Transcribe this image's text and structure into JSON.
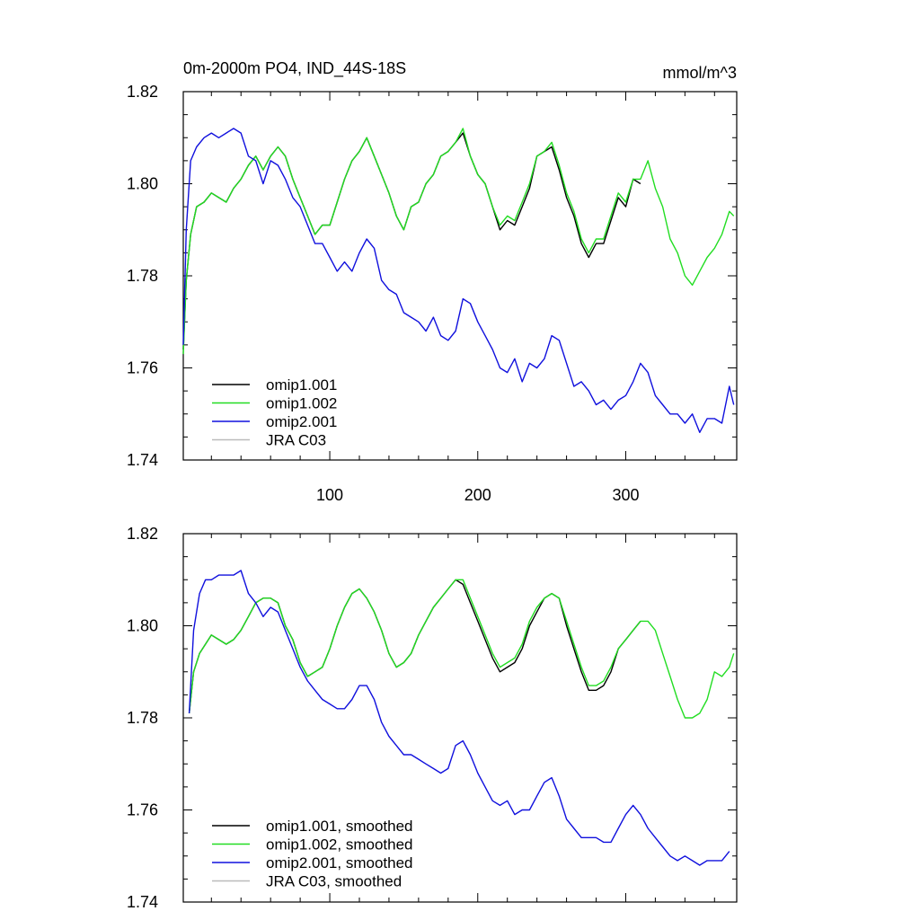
{
  "chart_data": [
    {
      "type": "line",
      "title": "0m-2000m PO4, IND_44S-18S",
      "units": "mmol/m^3",
      "xlim": [
        1,
        375
      ],
      "ylim": [
        1.74,
        1.82
      ],
      "xticks": [
        100,
        200,
        300
      ],
      "yticks": [
        1.74,
        1.76,
        1.78,
        1.8,
        1.82
      ],
      "ytick_labels": [
        "1.74",
        "1.76",
        "1.78",
        "1.80",
        "1.82"
      ],
      "xtick_labels": [
        "100",
        "200",
        "300"
      ],
      "series": [
        {
          "name": "omip1.001",
          "color": "#000000",
          "x": [
            1,
            3,
            6,
            10,
            15,
            20,
            25,
            30,
            35,
            40,
            45,
            50,
            55,
            60,
            65,
            70,
            75,
            80,
            85,
            90,
            95,
            100,
            105,
            110,
            115,
            120,
            125,
            130,
            135,
            140,
            145,
            150,
            155,
            160,
            165,
            170,
            175,
            180,
            185,
            190,
            195,
            200,
            205,
            210,
            215,
            220,
            225,
            230,
            235,
            240,
            245,
            250,
            255,
            260,
            265,
            270,
            275,
            280,
            285,
            290,
            295,
            300,
            305,
            310
          ],
          "y": [
            1.764,
            1.779,
            1.789,
            1.795,
            1.796,
            1.798,
            1.797,
            1.796,
            1.799,
            1.801,
            1.804,
            1.806,
            1.803,
            1.806,
            1.808,
            1.806,
            1.801,
            1.797,
            1.793,
            1.789,
            1.791,
            1.791,
            1.796,
            1.801,
            1.805,
            1.807,
            1.81,
            1.806,
            1.802,
            1.798,
            1.793,
            1.79,
            1.795,
            1.796,
            1.8,
            1.802,
            1.806,
            1.807,
            1.809,
            1.811,
            1.806,
            1.802,
            1.8,
            1.795,
            1.79,
            1.792,
            1.791,
            1.795,
            1.799,
            1.806,
            1.807,
            1.808,
            1.803,
            1.797,
            1.793,
            1.787,
            1.784,
            1.787,
            1.787,
            1.792,
            1.797,
            1.795,
            1.801,
            1.8
          ]
        },
        {
          "name": "omip1.002",
          "color": "#22dd22",
          "x": [
            1,
            3,
            6,
            10,
            15,
            20,
            25,
            30,
            35,
            40,
            45,
            50,
            55,
            60,
            65,
            70,
            75,
            80,
            85,
            90,
            95,
            100,
            105,
            110,
            115,
            120,
            125,
            130,
            135,
            140,
            145,
            150,
            155,
            160,
            165,
            170,
            175,
            180,
            185,
            190,
            195,
            200,
            205,
            210,
            215,
            220,
            225,
            230,
            235,
            240,
            245,
            250,
            255,
            260,
            265,
            270,
            275,
            280,
            285,
            290,
            295,
            300,
            305,
            310,
            315,
            320,
            325,
            330,
            335,
            340,
            345,
            350,
            355,
            360,
            365,
            370,
            373
          ],
          "y": [
            1.763,
            1.779,
            1.789,
            1.795,
            1.796,
            1.798,
            1.797,
            1.796,
            1.799,
            1.801,
            1.804,
            1.806,
            1.803,
            1.806,
            1.808,
            1.806,
            1.801,
            1.797,
            1.793,
            1.789,
            1.791,
            1.791,
            1.796,
            1.801,
            1.805,
            1.807,
            1.81,
            1.806,
            1.802,
            1.798,
            1.793,
            1.79,
            1.795,
            1.796,
            1.8,
            1.802,
            1.806,
            1.807,
            1.809,
            1.812,
            1.806,
            1.802,
            1.8,
            1.795,
            1.791,
            1.793,
            1.792,
            1.796,
            1.8,
            1.806,
            1.807,
            1.809,
            1.804,
            1.798,
            1.794,
            1.788,
            1.785,
            1.788,
            1.788,
            1.793,
            1.798,
            1.796,
            1.801,
            1.801,
            1.805,
            1.799,
            1.795,
            1.788,
            1.785,
            1.78,
            1.778,
            1.781,
            1.784,
            1.786,
            1.789,
            1.794,
            1.793
          ]
        },
        {
          "name": "omip2.001",
          "color": "#1010dd",
          "x": [
            1,
            3,
            6,
            10,
            15,
            20,
            25,
            30,
            35,
            40,
            45,
            50,
            55,
            60,
            65,
            70,
            75,
            80,
            85,
            90,
            95,
            100,
            105,
            110,
            115,
            120,
            125,
            130,
            135,
            140,
            145,
            150,
            155,
            160,
            165,
            170,
            175,
            180,
            185,
            190,
            195,
            200,
            205,
            210,
            215,
            220,
            225,
            230,
            235,
            240,
            245,
            250,
            255,
            260,
            265,
            270,
            275,
            280,
            285,
            290,
            295,
            300,
            305,
            310,
            315,
            320,
            325,
            330,
            335,
            340,
            345,
            350,
            355,
            360,
            365,
            370,
            373
          ],
          "y": [
            1.765,
            1.79,
            1.805,
            1.808,
            1.81,
            1.811,
            1.81,
            1.811,
            1.812,
            1.811,
            1.806,
            1.805,
            1.8,
            1.805,
            1.804,
            1.801,
            1.797,
            1.795,
            1.791,
            1.787,
            1.787,
            1.784,
            1.781,
            1.783,
            1.781,
            1.785,
            1.788,
            1.786,
            1.779,
            1.777,
            1.776,
            1.772,
            1.771,
            1.77,
            1.768,
            1.771,
            1.767,
            1.766,
            1.768,
            1.775,
            1.774,
            1.77,
            1.767,
            1.764,
            1.76,
            1.759,
            1.762,
            1.757,
            1.761,
            1.76,
            1.762,
            1.767,
            1.766,
            1.761,
            1.756,
            1.757,
            1.755,
            1.752,
            1.753,
            1.751,
            1.753,
            1.754,
            1.757,
            1.761,
            1.759,
            1.754,
            1.752,
            1.75,
            1.75,
            1.748,
            1.75,
            1.746,
            1.749,
            1.749,
            1.748,
            1.756,
            1.752
          ]
        },
        {
          "name": "JRA C03",
          "color": "#bbbbbb",
          "x": [],
          "y": []
        }
      ],
      "legend": [
        "omip1.001",
        "omip1.002",
        "omip2.001",
        "JRA C03"
      ],
      "legend_position": "bottom-left"
    },
    {
      "type": "line",
      "title": "",
      "xlim": [
        1,
        375
      ],
      "ylim": [
        1.74,
        1.82
      ],
      "xticks": [
        100,
        200,
        300
      ],
      "yticks": [
        1.74,
        1.76,
        1.78,
        1.8,
        1.82
      ],
      "ytick_labels": [
        "1.74",
        "1.76",
        "1.78",
        "1.80",
        "1.82"
      ],
      "xtick_labels": [],
      "series": [
        {
          "name": "omip1.001, smoothed",
          "color": "#000000",
          "x": [
            5,
            8,
            12,
            16,
            20,
            25,
            30,
            35,
            40,
            45,
            50,
            55,
            60,
            65,
            70,
            75,
            80,
            85,
            90,
            95,
            100,
            105,
            110,
            115,
            120,
            125,
            130,
            135,
            140,
            145,
            150,
            155,
            160,
            165,
            170,
            175,
            180,
            185,
            190,
            195,
            200,
            205,
            210,
            215,
            220,
            225,
            230,
            235,
            240,
            245,
            250,
            255,
            260,
            265,
            270,
            275,
            280,
            285,
            290,
            295,
            300,
            305,
            310
          ],
          "y": [
            1.781,
            1.79,
            1.794,
            1.796,
            1.798,
            1.797,
            1.796,
            1.797,
            1.799,
            1.802,
            1.805,
            1.806,
            1.806,
            1.805,
            1.8,
            1.797,
            1.792,
            1.789,
            1.79,
            1.791,
            1.795,
            1.8,
            1.804,
            1.807,
            1.808,
            1.806,
            1.803,
            1.799,
            1.794,
            1.791,
            1.792,
            1.794,
            1.798,
            1.801,
            1.804,
            1.806,
            1.808,
            1.81,
            1.809,
            1.805,
            1.801,
            1.797,
            1.793,
            1.79,
            1.791,
            1.792,
            1.795,
            1.8,
            1.803,
            1.806,
            1.807,
            1.806,
            1.8,
            1.795,
            1.79,
            1.786,
            1.786,
            1.787,
            1.79,
            1.795,
            1.797,
            1.799,
            1.801
          ]
        },
        {
          "name": "omip1.002, smoothed",
          "color": "#22dd22",
          "x": [
            5,
            8,
            12,
            16,
            20,
            25,
            30,
            35,
            40,
            45,
            50,
            55,
            60,
            65,
            70,
            75,
            80,
            85,
            90,
            95,
            100,
            105,
            110,
            115,
            120,
            125,
            130,
            135,
            140,
            145,
            150,
            155,
            160,
            165,
            170,
            175,
            180,
            185,
            190,
            195,
            200,
            205,
            210,
            215,
            220,
            225,
            230,
            235,
            240,
            245,
            250,
            255,
            260,
            265,
            270,
            275,
            280,
            285,
            290,
            295,
            300,
            305,
            310,
            315,
            320,
            325,
            330,
            335,
            340,
            345,
            350,
            355,
            360,
            365,
            370,
            373
          ],
          "y": [
            1.781,
            1.79,
            1.794,
            1.796,
            1.798,
            1.797,
            1.796,
            1.797,
            1.799,
            1.802,
            1.805,
            1.806,
            1.806,
            1.805,
            1.8,
            1.797,
            1.792,
            1.789,
            1.79,
            1.791,
            1.795,
            1.8,
            1.804,
            1.807,
            1.808,
            1.806,
            1.803,
            1.799,
            1.794,
            1.791,
            1.792,
            1.794,
            1.798,
            1.801,
            1.804,
            1.806,
            1.808,
            1.81,
            1.81,
            1.806,
            1.802,
            1.798,
            1.794,
            1.791,
            1.792,
            1.793,
            1.796,
            1.801,
            1.804,
            1.806,
            1.807,
            1.806,
            1.801,
            1.796,
            1.791,
            1.787,
            1.787,
            1.788,
            1.791,
            1.795,
            1.797,
            1.799,
            1.801,
            1.801,
            1.799,
            1.794,
            1.789,
            1.784,
            1.78,
            1.78,
            1.781,
            1.784,
            1.79,
            1.789,
            1.791,
            1.794
          ]
        },
        {
          "name": "omip2.001, smoothed",
          "color": "#1010dd",
          "x": [
            5,
            8,
            12,
            16,
            20,
            25,
            30,
            35,
            40,
            45,
            50,
            55,
            60,
            65,
            70,
            75,
            80,
            85,
            90,
            95,
            100,
            105,
            110,
            115,
            120,
            125,
            130,
            135,
            140,
            145,
            150,
            155,
            160,
            165,
            170,
            175,
            180,
            185,
            190,
            195,
            200,
            205,
            210,
            215,
            220,
            225,
            230,
            235,
            240,
            245,
            250,
            255,
            260,
            265,
            270,
            275,
            280,
            285,
            290,
            295,
            300,
            305,
            310,
            315,
            320,
            325,
            330,
            335,
            340,
            345,
            350,
            355,
            360,
            365,
            370
          ],
          "y": [
            1.781,
            1.799,
            1.807,
            1.81,
            1.81,
            1.811,
            1.811,
            1.811,
            1.812,
            1.807,
            1.805,
            1.802,
            1.804,
            1.803,
            1.799,
            1.795,
            1.791,
            1.788,
            1.786,
            1.784,
            1.783,
            1.782,
            1.782,
            1.784,
            1.787,
            1.787,
            1.784,
            1.779,
            1.776,
            1.774,
            1.772,
            1.772,
            1.771,
            1.77,
            1.769,
            1.768,
            1.769,
            1.774,
            1.775,
            1.772,
            1.768,
            1.765,
            1.762,
            1.761,
            1.762,
            1.759,
            1.76,
            1.76,
            1.763,
            1.766,
            1.767,
            1.763,
            1.758,
            1.756,
            1.754,
            1.754,
            1.754,
            1.753,
            1.753,
            1.756,
            1.759,
            1.761,
            1.759,
            1.756,
            1.754,
            1.752,
            1.75,
            1.749,
            1.75,
            1.749,
            1.748,
            1.749,
            1.749,
            1.749,
            1.751
          ]
        },
        {
          "name": "JRA C03, smoothed",
          "color": "#bbbbbb",
          "x": [],
          "y": []
        }
      ],
      "legend": [
        "omip1.001, smoothed",
        "omip1.002, smoothed",
        "omip2.001, smoothed",
        "JRA C03, smoothed"
      ],
      "legend_position": "bottom-left"
    }
  ]
}
